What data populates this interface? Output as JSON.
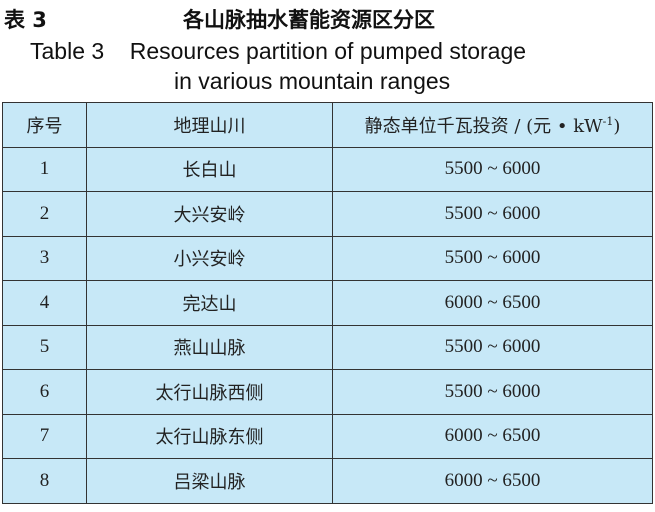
{
  "caption": {
    "cn_number": "表 3",
    "cn_title": "各山脉抽水蓄能资源区分区",
    "en_line1": "Table 3    Resources partition of pumped storage",
    "en_line2": "in various mountain ranges"
  },
  "table": {
    "headers": [
      "序号",
      "地理山川",
      "静态单位千瓦投资 / (元 • kW",
      "-1",
      ")"
    ],
    "rows": [
      [
        "1",
        "长白山",
        "5500  ~  6000"
      ],
      [
        "2",
        "大兴安岭",
        "5500  ~  6000"
      ],
      [
        "3",
        "小兴安岭",
        "5500  ~  6000"
      ],
      [
        "4",
        "完达山",
        "6000  ~  6500"
      ],
      [
        "5",
        "燕山山脉",
        "5500  ~  6000"
      ],
      [
        "6",
        "太行山脉西侧",
        "5500  ~  6000"
      ],
      [
        "7",
        "太行山脉东侧",
        "6000  ~  6500"
      ],
      [
        "8",
        "吕梁山脉",
        "6000  ~  6500"
      ]
    ]
  },
  "colors": {
    "table_bg": "#c7e8f7",
    "border": "#333333"
  }
}
